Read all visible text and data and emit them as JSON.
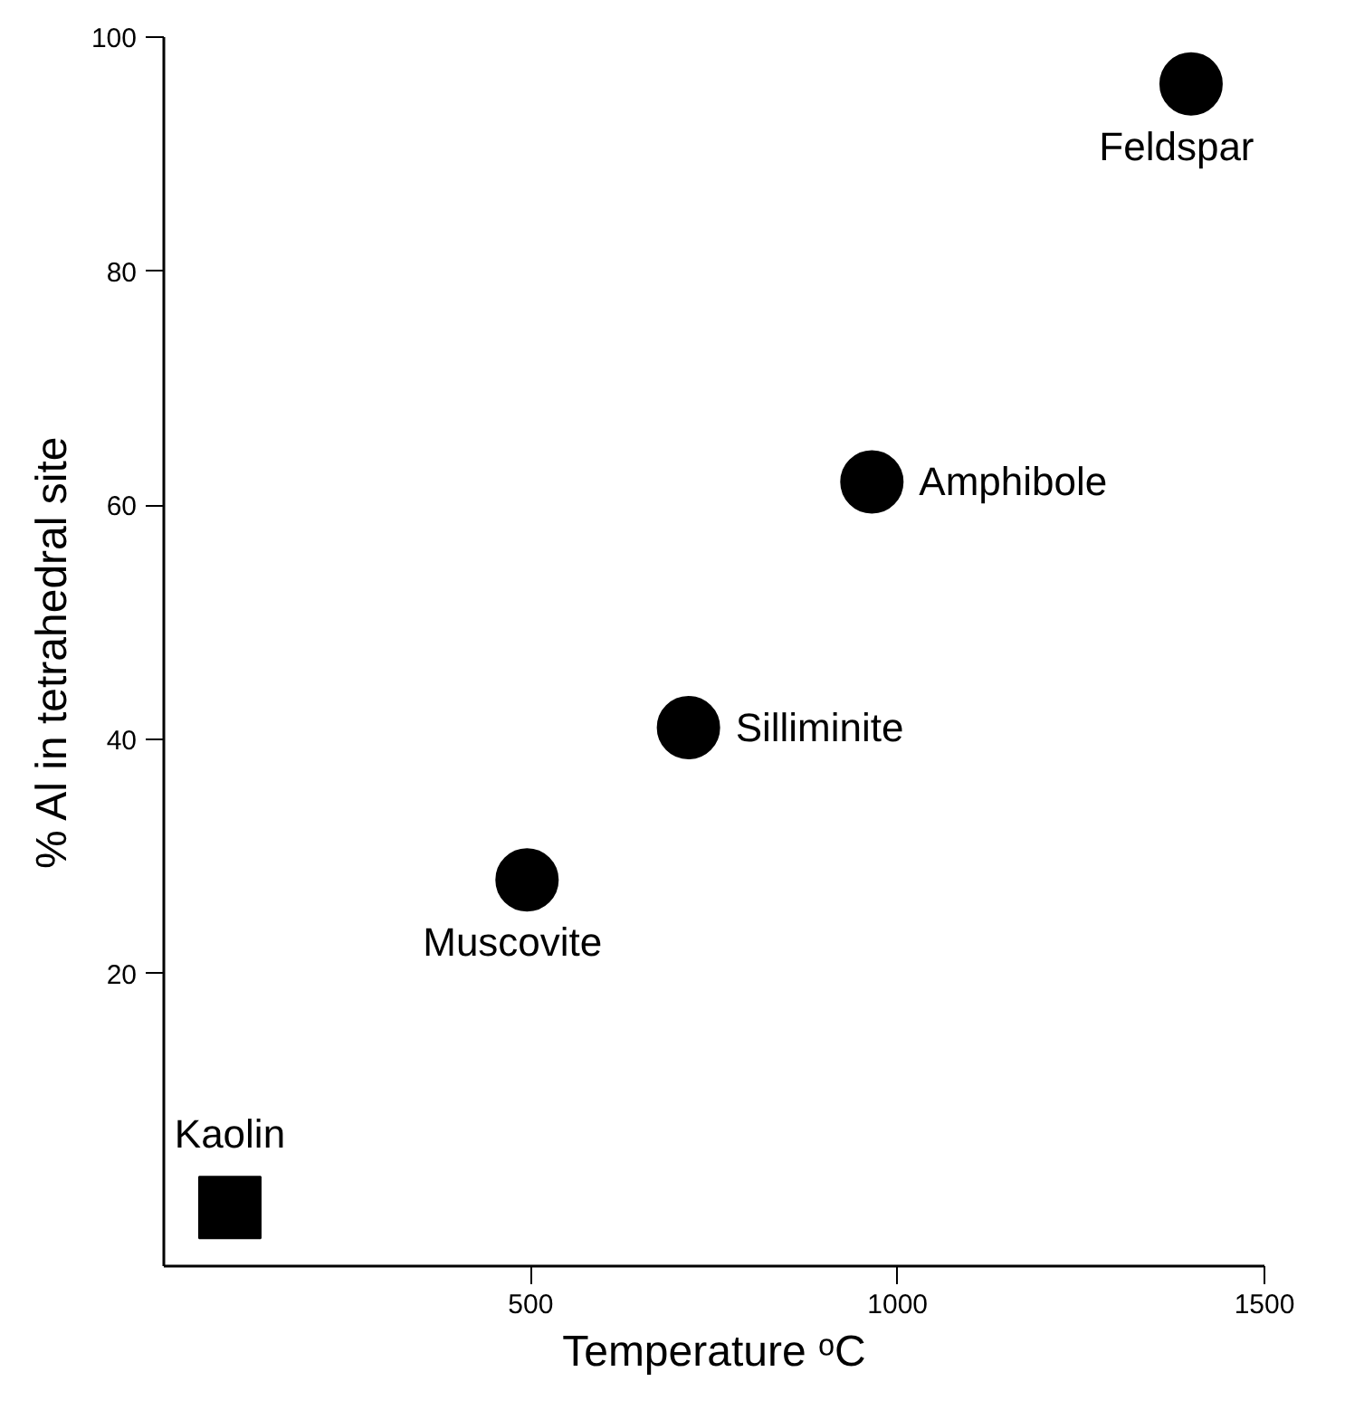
{
  "chart_data": {
    "type": "scatter",
    "xlabel": "Temperature ᵒC",
    "ylabel": "% Al in tetrahedral site",
    "xlim": [
      0,
      1500
    ],
    "ylim": [
      -5,
      100
    ],
    "xticks": [
      500,
      1000,
      1500
    ],
    "yticks": [
      20,
      40,
      60,
      80,
      100
    ],
    "grid": false,
    "series": [
      {
        "color": "#000000",
        "marker": "circle",
        "x": [
          1400,
          965,
          715,
          495
        ],
        "values": [
          96,
          62,
          41,
          28
        ]
      },
      {
        "color": "#000000",
        "marker": "square",
        "x": [
          90
        ],
        "values": [
          0
        ]
      }
    ],
    "annotations": [
      {
        "text": "Feldspar",
        "x": 1400,
        "y": 96
      },
      {
        "text": "Amphibole",
        "x": 965,
        "y": 62
      },
      {
        "text": "Silliminite",
        "x": 715,
        "y": 41
      },
      {
        "text": "Muscovite",
        "x": 495,
        "y": 28
      },
      {
        "text": "Kaolin",
        "x": 90,
        "y": 0
      }
    ]
  }
}
